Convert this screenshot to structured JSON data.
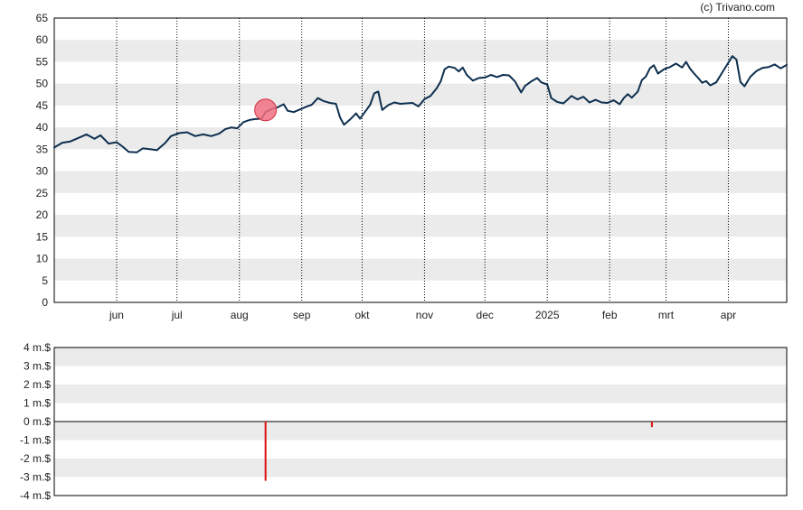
{
  "watermark": "(c) Trivano.com",
  "colors": {
    "price_line": "#0d2f4f",
    "band": "#ebebeb",
    "marker_fill": "#f07080",
    "marker_stroke": "#d03040",
    "volume_bar": "#dd1111",
    "axis": "#000000"
  },
  "chart_data": [
    {
      "type": "line",
      "title": "",
      "xlabel": "",
      "ylabel": "",
      "ylim": [
        0,
        65
      ],
      "yticks": [
        0,
        5,
        10,
        15,
        20,
        25,
        30,
        35,
        40,
        45,
        50,
        55,
        60,
        65
      ],
      "grid": "horizontal alternating bands, dotted vertical month lines",
      "x_start": "2024-05-01",
      "x_end": "2025-04-30",
      "x_ticks": [
        {
          "label": "jun",
          "date": "2024-06-01"
        },
        {
          "label": "jul",
          "date": "2024-07-01"
        },
        {
          "label": "aug",
          "date": "2024-08-01"
        },
        {
          "label": "sep",
          "date": "2024-09-01"
        },
        {
          "label": "okt",
          "date": "2024-10-01"
        },
        {
          "label": "nov",
          "date": "2024-11-01"
        },
        {
          "label": "dec",
          "date": "2024-12-01"
        },
        {
          "label": "2025",
          "date": "2025-01-01"
        },
        {
          "label": "feb",
          "date": "2025-02-01"
        },
        {
          "label": "mrt",
          "date": "2025-03-01"
        },
        {
          "label": "apr",
          "date": "2025-04-01"
        }
      ],
      "series": [
        {
          "points": [
            [
              "2024-05-01",
              35.4
            ],
            [
              "2024-05-05",
              36.5
            ],
            [
              "2024-05-09",
              36.8
            ],
            [
              "2024-05-13",
              37.6
            ],
            [
              "2024-05-17",
              38.4
            ],
            [
              "2024-05-21",
              37.4
            ],
            [
              "2024-05-24",
              38.2
            ],
            [
              "2024-05-28",
              36.3
            ],
            [
              "2024-06-01",
              36.6
            ],
            [
              "2024-06-04",
              35.6
            ],
            [
              "2024-06-07",
              34.4
            ],
            [
              "2024-06-11",
              34.3
            ],
            [
              "2024-06-14",
              35.2
            ],
            [
              "2024-06-18",
              35.0
            ],
            [
              "2024-06-21",
              34.8
            ],
            [
              "2024-06-25",
              36.4
            ],
            [
              "2024-06-28",
              38.0
            ],
            [
              "2024-07-02",
              38.7
            ],
            [
              "2024-07-06",
              38.9
            ],
            [
              "2024-07-10",
              38.0
            ],
            [
              "2024-07-14",
              38.4
            ],
            [
              "2024-07-18",
              38.0
            ],
            [
              "2024-07-22",
              38.6
            ],
            [
              "2024-07-25",
              39.6
            ],
            [
              "2024-07-28",
              40.0
            ],
            [
              "2024-07-31",
              39.8
            ],
            [
              "2024-08-03",
              41.2
            ],
            [
              "2024-08-06",
              41.7
            ],
            [
              "2024-08-09",
              41.9
            ],
            [
              "2024-08-12",
              42.0
            ],
            [
              "2024-08-14",
              43.5
            ],
            [
              "2024-08-17",
              44.2
            ],
            [
              "2024-08-20",
              44.6
            ],
            [
              "2024-08-23",
              45.3
            ],
            [
              "2024-08-25",
              43.8
            ],
            [
              "2024-08-28",
              43.5
            ],
            [
              "2024-08-31",
              44.1
            ],
            [
              "2024-09-03",
              44.7
            ],
            [
              "2024-09-06",
              45.2
            ],
            [
              "2024-09-09",
              46.7
            ],
            [
              "2024-09-12",
              46.0
            ],
            [
              "2024-09-15",
              45.6
            ],
            [
              "2024-09-18",
              45.4
            ],
            [
              "2024-09-20",
              42.3
            ],
            [
              "2024-09-22",
              40.6
            ],
            [
              "2024-09-25",
              41.8
            ],
            [
              "2024-09-28",
              43.2
            ],
            [
              "2024-09-30",
              42.0
            ],
            [
              "2024-10-02",
              43.3
            ],
            [
              "2024-10-05",
              45.2
            ],
            [
              "2024-10-07",
              47.8
            ],
            [
              "2024-10-09",
              48.2
            ],
            [
              "2024-10-11",
              44.0
            ],
            [
              "2024-10-14",
              45.1
            ],
            [
              "2024-10-17",
              45.7
            ],
            [
              "2024-10-20",
              45.4
            ],
            [
              "2024-10-23",
              45.5
            ],
            [
              "2024-10-26",
              45.6
            ],
            [
              "2024-10-29",
              44.8
            ],
            [
              "2024-11-01",
              46.5
            ],
            [
              "2024-11-04",
              47.2
            ],
            [
              "2024-11-07",
              48.9
            ],
            [
              "2024-11-09",
              50.5
            ],
            [
              "2024-11-11",
              53.3
            ],
            [
              "2024-11-13",
              53.9
            ],
            [
              "2024-11-16",
              53.6
            ],
            [
              "2024-11-18",
              52.8
            ],
            [
              "2024-11-20",
              53.7
            ],
            [
              "2024-11-22",
              52.0
            ],
            [
              "2024-11-25",
              50.7
            ],
            [
              "2024-11-28",
              51.3
            ],
            [
              "2024-12-01",
              51.4
            ],
            [
              "2024-12-04",
              52.0
            ],
            [
              "2024-12-07",
              51.5
            ],
            [
              "2024-12-10",
              52.0
            ],
            [
              "2024-12-13",
              51.9
            ],
            [
              "2024-12-16",
              50.5
            ],
            [
              "2024-12-19",
              48.0
            ],
            [
              "2024-12-21",
              49.5
            ],
            [
              "2024-12-24",
              50.5
            ],
            [
              "2024-12-27",
              51.3
            ],
            [
              "2024-12-29",
              50.3
            ],
            [
              "2025-01-01",
              49.8
            ],
            [
              "2025-01-03",
              46.7
            ],
            [
              "2025-01-06",
              45.8
            ],
            [
              "2025-01-09",
              45.5
            ],
            [
              "2025-01-11",
              46.3
            ],
            [
              "2025-01-13",
              47.2
            ],
            [
              "2025-01-16",
              46.4
            ],
            [
              "2025-01-19",
              47.0
            ],
            [
              "2025-01-22",
              45.7
            ],
            [
              "2025-01-25",
              46.3
            ],
            [
              "2025-01-28",
              45.7
            ],
            [
              "2025-01-31",
              45.6
            ],
            [
              "2025-02-03",
              46.2
            ],
            [
              "2025-02-06",
              45.3
            ],
            [
              "2025-02-08",
              46.7
            ],
            [
              "2025-02-10",
              47.6
            ],
            [
              "2025-02-12",
              46.8
            ],
            [
              "2025-02-15",
              48.2
            ],
            [
              "2025-02-17",
              50.8
            ],
            [
              "2025-02-19",
              51.6
            ],
            [
              "2025-02-21",
              53.5
            ],
            [
              "2025-02-23",
              54.2
            ],
            [
              "2025-02-25",
              52.3
            ],
            [
              "2025-02-28",
              53.3
            ],
            [
              "2025-03-03",
              53.8
            ],
            [
              "2025-03-06",
              54.6
            ],
            [
              "2025-03-09",
              53.7
            ],
            [
              "2025-03-11",
              55.0
            ],
            [
              "2025-03-13",
              53.4
            ],
            [
              "2025-03-15",
              52.3
            ],
            [
              "2025-03-17",
              51.3
            ],
            [
              "2025-03-19",
              50.2
            ],
            [
              "2025-03-21",
              50.6
            ],
            [
              "2025-03-23",
              49.6
            ],
            [
              "2025-03-26",
              50.3
            ],
            [
              "2025-03-29",
              52.6
            ],
            [
              "2025-04-01",
              54.8
            ],
            [
              "2025-04-03",
              56.3
            ],
            [
              "2025-04-05",
              55.5
            ],
            [
              "2025-04-07",
              50.4
            ],
            [
              "2025-04-09",
              49.4
            ],
            [
              "2025-04-12",
              51.6
            ],
            [
              "2025-04-15",
              52.9
            ],
            [
              "2025-04-18",
              53.6
            ],
            [
              "2025-04-21",
              53.8
            ],
            [
              "2025-04-24",
              54.4
            ],
            [
              "2025-04-27",
              53.5
            ],
            [
              "2025-04-30",
              54.3
            ]
          ]
        }
      ],
      "marker": {
        "date": "2024-08-14",
        "value": 44
      }
    },
    {
      "type": "bar",
      "title": "",
      "xlabel": "",
      "ylabel": "",
      "ylim": [
        -4,
        4
      ],
      "yticks": [
        {
          "value": 4,
          "label": "4 m.$"
        },
        {
          "value": 3,
          "label": "3 m.$"
        },
        {
          "value": 2,
          "label": "2 m.$"
        },
        {
          "value": 1,
          "label": "1 m.$"
        },
        {
          "value": 0,
          "label": "0 m.$"
        },
        {
          "value": -1,
          "label": "-1 m.$"
        },
        {
          "value": -2,
          "label": "-2 m.$"
        },
        {
          "value": -3,
          "label": "-3 m.$"
        },
        {
          "value": -4,
          "label": "-4 m.$"
        }
      ],
      "bars": [
        {
          "date": "2024-08-14",
          "value": -3.2
        },
        {
          "date": "2025-02-22",
          "value": -0.3
        }
      ]
    }
  ]
}
